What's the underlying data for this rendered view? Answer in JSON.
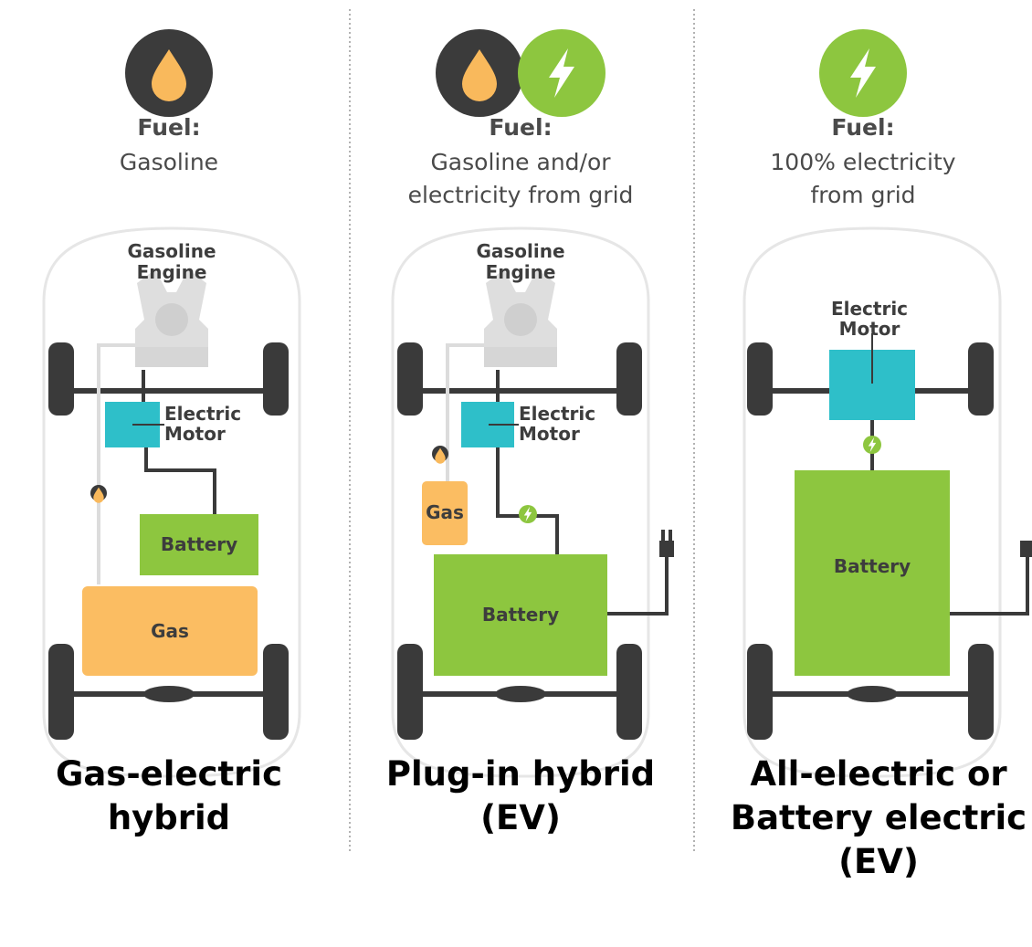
{
  "columns": [
    {
      "fuel_label": "Fuel:",
      "fuel_lines": [
        "Gasoline"
      ],
      "engine_lines": [
        "Gasoline",
        "Engine"
      ],
      "motor_lines": [
        "Electric",
        "Motor"
      ],
      "battery": "Battery",
      "gas": "Gas",
      "title_lines": [
        "Gas-electric",
        "hybrid"
      ]
    },
    {
      "fuel_label": "Fuel:",
      "fuel_lines": [
        "Gasoline and/or",
        "electricity from grid"
      ],
      "engine_lines": [
        "Gasoline",
        "Engine"
      ],
      "motor_lines": [
        "Electric",
        "Motor"
      ],
      "battery": "Battery",
      "gas": "Gas",
      "title_lines": [
        "Plug-in hybrid",
        "(EV)"
      ]
    },
    {
      "fuel_label": "Fuel:",
      "fuel_lines": [
        "100% electricity",
        "from grid"
      ],
      "motor_lines": [
        "Electric",
        "Motor"
      ],
      "battery": "Battery",
      "title_lines": [
        "All-electric or",
        "Battery electric",
        "(EV)"
      ]
    }
  ]
}
